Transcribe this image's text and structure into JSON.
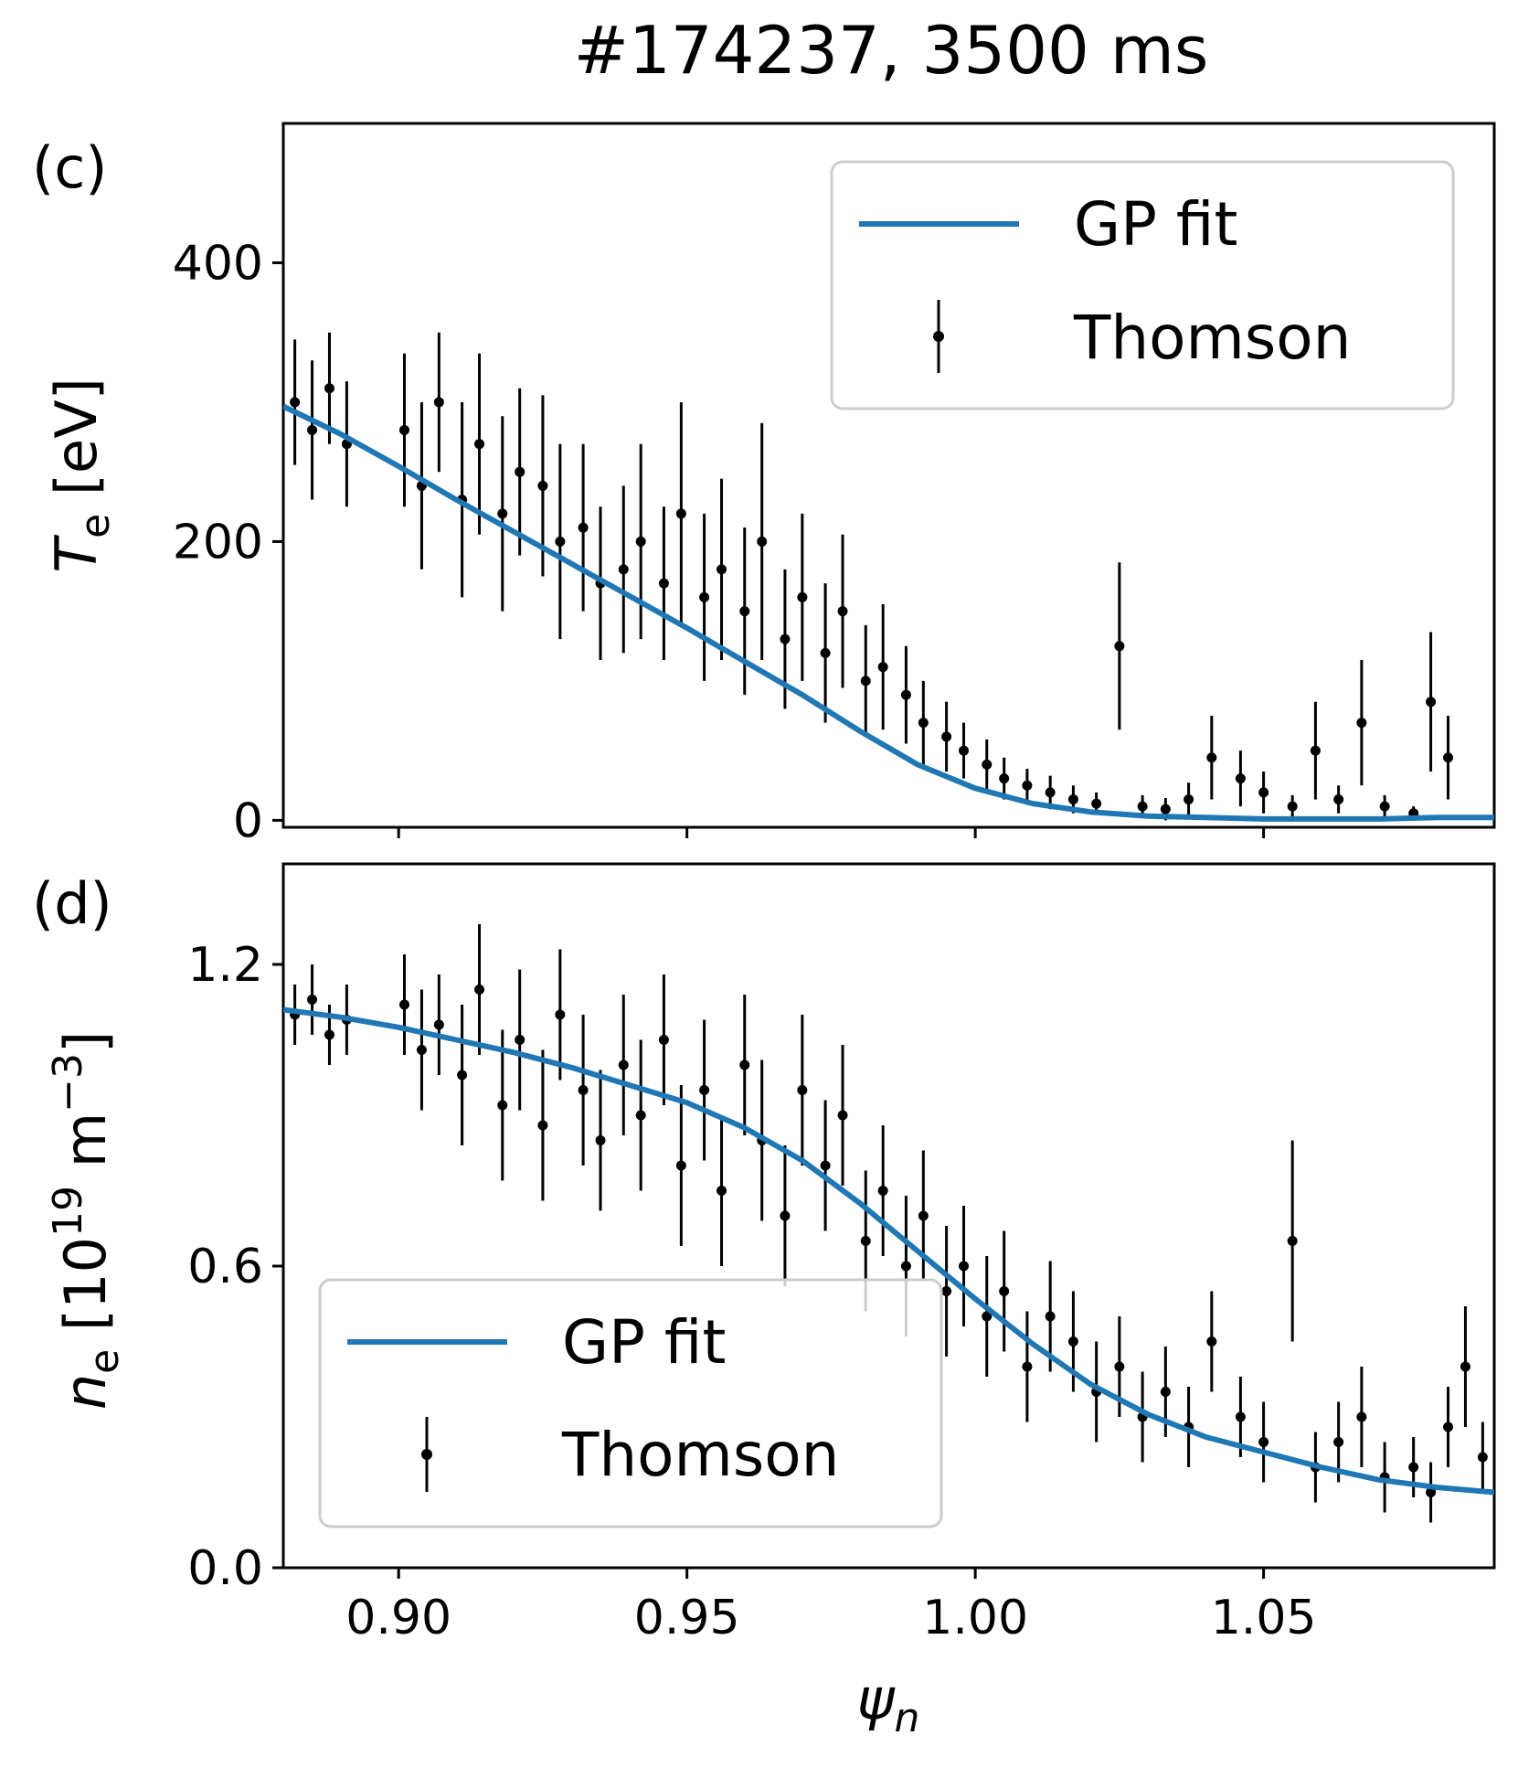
{
  "chart_data": [
    {
      "type": "scatter",
      "panel_label": "(c)",
      "title": "#174237, 3500 ms",
      "ylabel_symbol": "T",
      "ylabel_subscript": "e",
      "ylabel_unit": " [eV]",
      "xlim": [
        0.88,
        1.09
      ],
      "ylim": [
        -5,
        500
      ],
      "yticks": [
        0,
        200,
        400
      ],
      "ytick_labels": [
        "0",
        "200",
        "400"
      ],
      "xticks": [
        0.9,
        0.95,
        1.0,
        1.05
      ],
      "legend": {
        "location": "upper right",
        "entries": [
          "GP fit",
          "Thomson"
        ]
      },
      "series": [
        {
          "name": "GP fit",
          "kind": "line",
          "color": "#1f77b4",
          "x": [
            0.88,
            0.89,
            0.9,
            0.91,
            0.92,
            0.93,
            0.94,
            0.95,
            0.96,
            0.97,
            0.98,
            0.99,
            1.0,
            1.01,
            1.02,
            1.03,
            1.04,
            1.05,
            1.06,
            1.07,
            1.08,
            1.09
          ],
          "y": [
            297,
            277,
            254,
            230,
            207,
            184,
            161,
            138,
            114,
            90,
            64,
            40,
            23,
            12,
            6,
            3,
            2,
            1,
            1,
            1,
            2,
            2
          ]
        },
        {
          "name": "Thomson",
          "kind": "errorbar",
          "color": "#000000",
          "x": [
            0.882,
            0.885,
            0.888,
            0.891,
            0.901,
            0.904,
            0.907,
            0.911,
            0.914,
            0.918,
            0.921,
            0.925,
            0.928,
            0.932,
            0.935,
            0.939,
            0.942,
            0.946,
            0.949,
            0.953,
            0.956,
            0.96,
            0.963,
            0.967,
            0.97,
            0.974,
            0.977,
            0.981,
            0.984,
            0.988,
            0.991,
            0.995,
            0.998,
            1.002,
            1.005,
            1.009,
            1.013,
            1.017,
            1.021,
            1.025,
            1.029,
            1.033,
            1.037,
            1.041,
            1.046,
            1.05,
            1.055,
            1.059,
            1.063,
            1.067,
            1.071,
            1.076,
            1.079,
            1.082
          ],
          "y": [
            300,
            280,
            310,
            270,
            280,
            240,
            300,
            230,
            270,
            220,
            250,
            240,
            200,
            210,
            170,
            180,
            200,
            170,
            220,
            160,
            180,
            150,
            200,
            130,
            160,
            120,
            150,
            100,
            110,
            90,
            70,
            60,
            50,
            40,
            30,
            25,
            20,
            15,
            12,
            125,
            10,
            8,
            15,
            45,
            30,
            20,
            10,
            50,
            15,
            70,
            10,
            5,
            85,
            45
          ],
          "yerr": [
            45,
            50,
            40,
            45,
            55,
            60,
            50,
            70,
            65,
            70,
            60,
            65,
            70,
            60,
            55,
            60,
            70,
            55,
            80,
            60,
            65,
            60,
            85,
            50,
            60,
            50,
            55,
            40,
            45,
            35,
            30,
            25,
            20,
            18,
            15,
            12,
            12,
            10,
            8,
            60,
            8,
            8,
            12,
            30,
            20,
            15,
            8,
            35,
            10,
            45,
            8,
            5,
            50,
            30
          ]
        }
      ]
    },
    {
      "type": "scatter",
      "panel_label": "(d)",
      "ylabel_symbol": "n",
      "ylabel_subscript": "e",
      "ylabel_unit_prefix": " [10",
      "ylabel_exp1": "19",
      "ylabel_unit_mid": " m",
      "ylabel_exp2": "−3",
      "ylabel_unit_suffix": "]",
      "xlabel_symbol": "ψ",
      "xlabel_subscript": "n",
      "xlim": [
        0.88,
        1.09
      ],
      "ylim": [
        0.0,
        1.4
      ],
      "yticks": [
        0.0,
        0.6,
        1.2
      ],
      "ytick_labels": [
        "0.0",
        "0.6",
        "1.2"
      ],
      "xticks": [
        0.9,
        0.95,
        1.0,
        1.05
      ],
      "xtick_labels": [
        "0.90",
        "0.95",
        "1.00",
        "1.05"
      ],
      "legend": {
        "location": "lower left",
        "entries": [
          "GP fit",
          "Thomson"
        ]
      },
      "series": [
        {
          "name": "GP fit",
          "kind": "line",
          "color": "#1f77b4",
          "x": [
            0.88,
            0.89,
            0.9,
            0.91,
            0.92,
            0.93,
            0.94,
            0.95,
            0.96,
            0.97,
            0.98,
            0.99,
            1.0,
            1.01,
            1.02,
            1.03,
            1.04,
            1.05,
            1.06,
            1.07,
            1.08,
            1.09
          ],
          "y": [
            1.11,
            1.095,
            1.075,
            1.05,
            1.025,
            0.995,
            0.96,
            0.925,
            0.875,
            0.81,
            0.725,
            0.63,
            0.535,
            0.445,
            0.365,
            0.305,
            0.26,
            0.23,
            0.2,
            0.175,
            0.16,
            0.15
          ]
        },
        {
          "name": "Thomson",
          "kind": "errorbar",
          "color": "#000000",
          "x": [
            0.882,
            0.885,
            0.888,
            0.891,
            0.901,
            0.904,
            0.907,
            0.911,
            0.914,
            0.918,
            0.921,
            0.925,
            0.928,
            0.932,
            0.935,
            0.939,
            0.942,
            0.946,
            0.949,
            0.953,
            0.956,
            0.96,
            0.963,
            0.967,
            0.97,
            0.974,
            0.977,
            0.981,
            0.984,
            0.988,
            0.991,
            0.995,
            0.998,
            1.002,
            1.005,
            1.009,
            1.013,
            1.017,
            1.021,
            1.025,
            1.029,
            1.033,
            1.037,
            1.041,
            1.046,
            1.05,
            1.055,
            1.059,
            1.063,
            1.067,
            1.071,
            1.076,
            1.079,
            1.082,
            1.085,
            1.088
          ],
          "y": [
            1.1,
            1.13,
            1.06,
            1.09,
            1.12,
            1.03,
            1.08,
            0.98,
            1.15,
            0.92,
            1.05,
            0.88,
            1.1,
            0.95,
            0.85,
            1.0,
            0.9,
            1.05,
            0.8,
            0.95,
            0.75,
            1.0,
            0.85,
            0.7,
            0.95,
            0.8,
            0.9,
            0.65,
            0.75,
            0.6,
            0.7,
            0.55,
            0.6,
            0.5,
            0.55,
            0.4,
            0.5,
            0.45,
            0.35,
            0.4,
            0.3,
            0.35,
            0.28,
            0.45,
            0.3,
            0.25,
            0.65,
            0.2,
            0.25,
            0.3,
            0.18,
            0.2,
            0.15,
            0.28,
            0.4,
            0.22
          ],
          "yerr": [
            0.06,
            0.07,
            0.06,
            0.07,
            0.1,
            0.12,
            0.1,
            0.14,
            0.13,
            0.15,
            0.14,
            0.15,
            0.13,
            0.15,
            0.14,
            0.14,
            0.15,
            0.13,
            0.16,
            0.14,
            0.15,
            0.14,
            0.16,
            0.14,
            0.15,
            0.13,
            0.14,
            0.14,
            0.13,
            0.14,
            0.13,
            0.13,
            0.12,
            0.12,
            0.12,
            0.11,
            0.11,
            0.1,
            0.1,
            0.1,
            0.09,
            0.09,
            0.08,
            0.1,
            0.08,
            0.08,
            0.2,
            0.07,
            0.08,
            0.1,
            0.07,
            0.06,
            0.06,
            0.08,
            0.12,
            0.07
          ]
        }
      ]
    }
  ]
}
